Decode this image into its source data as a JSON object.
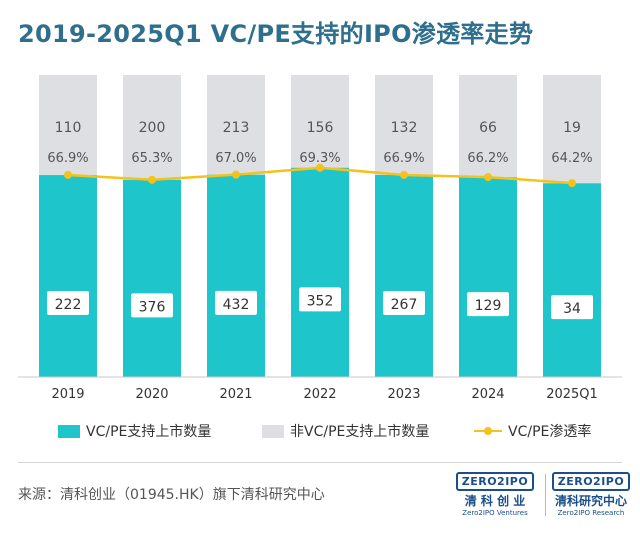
{
  "title": "2019-2025Q1 VC/PE支持的IPO渗透率走势",
  "chart_data": {
    "type": "bar",
    "stacked": true,
    "categories": [
      "2019",
      "2020",
      "2021",
      "2022",
      "2023",
      "2024",
      "2025Q1"
    ],
    "series": [
      {
        "name": "VC/PE支持上市数量",
        "values": [
          222,
          376,
          432,
          352,
          267,
          129,
          34
        ],
        "color": "#1ec6cc"
      },
      {
        "name": "非VC/PE支持上市数量",
        "values": [
          110,
          200,
          213,
          156,
          132,
          66,
          19
        ],
        "color": "#dedfe3"
      }
    ],
    "line_series": {
      "name": "VC/PE渗透率",
      "values": [
        66.9,
        65.3,
        67.0,
        69.3,
        66.9,
        66.2,
        64.2
      ],
      "labels": [
        "66.9%",
        "65.3%",
        "67.0%",
        "69.3%",
        "66.9%",
        "66.2%",
        "64.2%"
      ],
      "color": "#f3c21c",
      "ylim": [
        0,
        100
      ]
    },
    "bars_normalized": true,
    "grid": false,
    "legend_position": "bottom"
  },
  "source": "来源：清科创业（01945.HK）旗下清科研究中心",
  "logos": [
    {
      "badge": "ZERO2IPO",
      "cn": "清 科 创 业",
      "en": "Zero2IPO Ventures"
    },
    {
      "badge": "ZERO2IPO",
      "cn": "清科研究中心",
      "en": "Zero2IPO Research"
    }
  ]
}
